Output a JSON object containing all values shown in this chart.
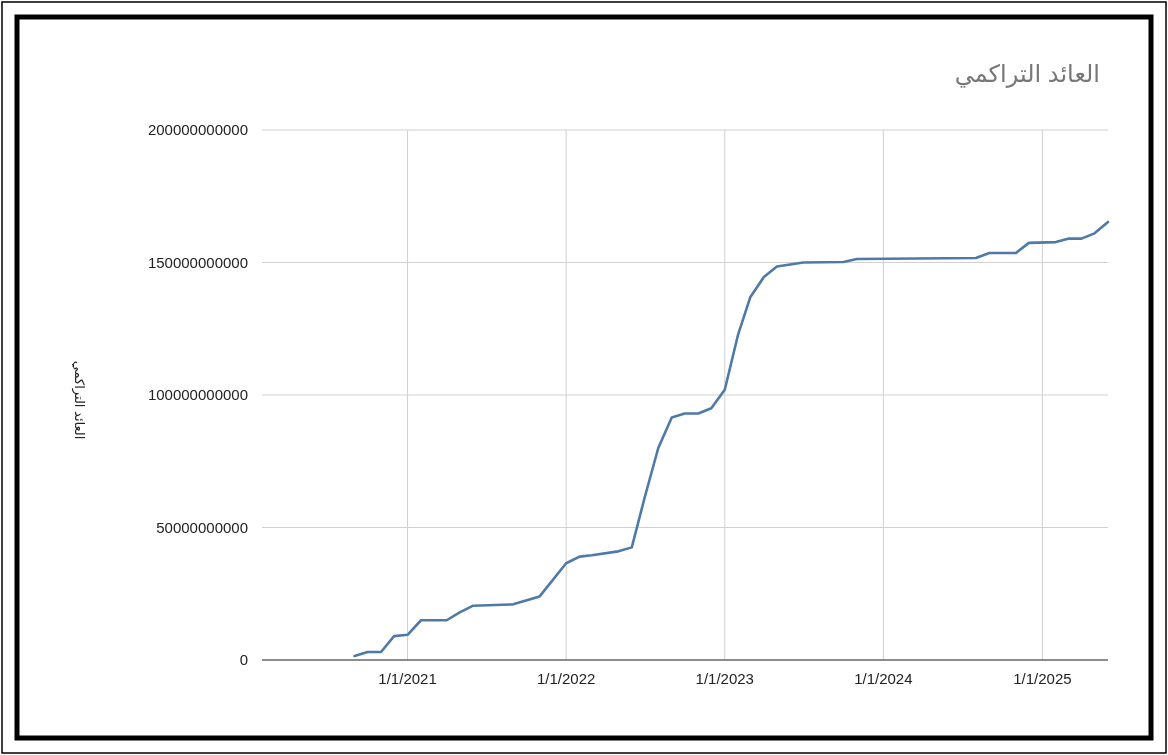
{
  "chart_data": {
    "type": "line",
    "title": "العائد التراكمي",
    "ylabel": "العائد التراكمي",
    "x": [
      "2020-09",
      "2020-10",
      "2020-11",
      "2020-12",
      "2021-01",
      "2021-02",
      "2021-04",
      "2021-05",
      "2021-06",
      "2021-09",
      "2021-11",
      "2022-01",
      "2022-02",
      "2022-03",
      "2022-05",
      "2022-06",
      "2022-07",
      "2022-08",
      "2022-09",
      "2022-10",
      "2022-11",
      "2022-12",
      "2023-01",
      "2023-02",
      "2023-03",
      "2023-04",
      "2023-05",
      "2023-07",
      "2023-10",
      "2023-11",
      "2024-08",
      "2024-09",
      "2024-11",
      "2024-12",
      "2025-02",
      "2025-03",
      "2025-04",
      "2025-05",
      "2025-06"
    ],
    "series": [
      {
        "color": "#4f79a8",
        "values": [
          1500000000,
          3000000000,
          3000000000,
          9000000000,
          9500000000,
          15000000000,
          15000000000,
          18000000000,
          20500000000,
          21000000000,
          24000000000,
          36500000000,
          39000000000,
          39500000000,
          41000000000,
          42500000000,
          61500000000,
          80000000000,
          91500000000,
          93000000000,
          93000000000,
          95000000000,
          102000000000,
          123000000000,
          137000000000,
          144500000000,
          148500000000,
          150000000000,
          150200000000,
          151300000000,
          151700000000,
          153600000000,
          153600000000,
          157400000000,
          157700000000,
          159000000000,
          159000000000,
          161000000000,
          165300000000
        ]
      }
    ],
    "xlim": [
      "2020-02",
      "2025-06"
    ],
    "xticks": [
      {
        "value": "2021-01-01",
        "label": "1/1/2021"
      },
      {
        "value": "2022-01-01",
        "label": "1/1/2022"
      },
      {
        "value": "2023-01-01",
        "label": "1/1/2023"
      },
      {
        "value": "2024-01-01",
        "label": "1/1/2024"
      },
      {
        "value": "2025-01-01",
        "label": "1/1/2025"
      }
    ],
    "ylim": [
      0,
      200000000000
    ],
    "yticks": [
      0,
      50000000000,
      100000000000,
      150000000000,
      200000000000
    ],
    "grid": true,
    "line_style": "solid",
    "marker": "none"
  }
}
